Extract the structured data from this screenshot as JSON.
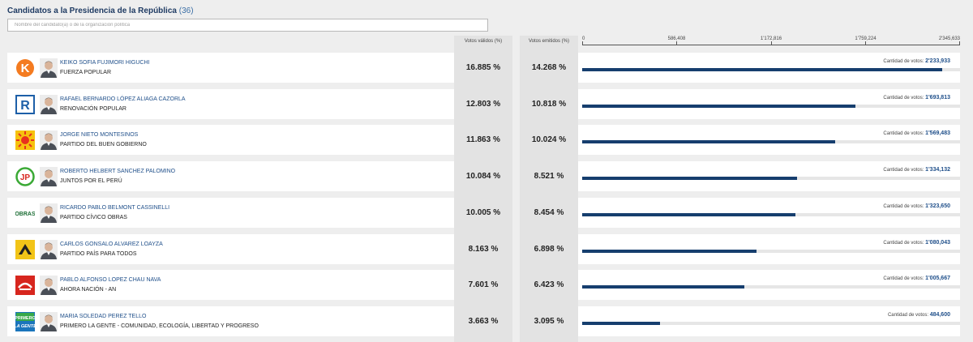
{
  "header": {
    "title": "Candidatos a la Presidencia de la República",
    "count": "(36)",
    "search_placeholder": "Nombre del candidato(a) o de la organización política",
    "col_valid": "Votos válidos (%)",
    "col_emit": "Votos emitidos (%)",
    "votes_label": "Cantidad de votos:"
  },
  "axis": {
    "max": 2345633,
    "ticks": [
      {
        "value": 0,
        "label": "0"
      },
      {
        "value": 586408,
        "label": "586,408"
      },
      {
        "value": 1172816,
        "label": "1'172,816"
      },
      {
        "value": 1759224,
        "label": "1'759,224"
      },
      {
        "value": 2345633,
        "label": "2'345,633"
      }
    ]
  },
  "candidates": [
    {
      "name": "KEIKO SOFIA FUJIMORI HIGUCHI",
      "party": "FUERZA POPULAR",
      "valid": "16.885 %",
      "emitted": "14.268 %",
      "votes_text": "2'233,933",
      "votes": 2233933,
      "logo_icon": "fuerza-popular-k-logo-icon",
      "logo_color": "#f47b20"
    },
    {
      "name": "RAFAEL BERNARDO LÓPEZ ALIAGA CAZORLA",
      "party": "RENOVACIÓN POPULAR",
      "valid": "12.803 %",
      "emitted": "10.818 %",
      "votes_text": "1'693,813",
      "votes": 1693813,
      "logo_icon": "renovacion-popular-r-logo-icon",
      "logo_color": "#1d5fa8"
    },
    {
      "name": "JORGE NIETO MONTESINOS",
      "party": "PARTIDO DEL BUEN GOBIERNO",
      "valid": "11.863 %",
      "emitted": "10.024 %",
      "votes_text": "1'569,483",
      "votes": 1569483,
      "logo_icon": "sun-logo-icon",
      "logo_color": "#e8321e"
    },
    {
      "name": "ROBERTO HELBERT SANCHEZ PALOMINO",
      "party": "JUNTOS POR EL PERÚ",
      "valid": "10.084 %",
      "emitted": "8.521 %",
      "votes_text": "1'334,132",
      "votes": 1334132,
      "logo_icon": "juntos-por-el-peru-jp-logo-icon",
      "logo_color": "#3aa935"
    },
    {
      "name": "RICARDO PABLO BELMONT CASSINELLI",
      "party": "PARTIDO CÍVICO OBRAS",
      "valid": "10.005 %",
      "emitted": "8.454 %",
      "votes_text": "1'323,650",
      "votes": 1323650,
      "logo_icon": "obras-logo-icon",
      "logo_color": "#1b6d34",
      "logo_text": "OBRAS"
    },
    {
      "name": "CARLOS GONSALO ALVAREZ LOAYZA",
      "party": "PARTIDO PAÍS PARA TODOS",
      "valid": "8.163 %",
      "emitted": "6.898 %",
      "votes_text": "1'080,043",
      "votes": 1080043,
      "logo_icon": "pais-para-todos-logo-icon",
      "logo_color": "#f2c418"
    },
    {
      "name": "PABLO ALFONSO LOPEZ CHAU NAVA",
      "party": "AHORA NACIÓN - AN",
      "valid": "7.601 %",
      "emitted": "6.423 %",
      "votes_text": "1'005,667",
      "votes": 1005667,
      "logo_icon": "ahora-nacion-logo-icon",
      "logo_color": "#d7261e"
    },
    {
      "name": "MARIA SOLEDAD PEREZ TELLO",
      "party": "PRIMERO LA GENTE - COMUNIDAD, ECOLOGÍA, LIBERTAD Y PROGRESO",
      "valid": "3.663 %",
      "emitted": "3.095 %",
      "votes_text": "484,600",
      "votes": 484600,
      "logo_icon": "primero-la-gente-logo-icon",
      "logo_color": "#1b75bc",
      "logo_text": "PRIMERO LA GENTE"
    }
  ],
  "colors": {
    "bar": "#163e6e",
    "track": "#e6e6e6",
    "name": "#1f4f8a",
    "title": "#1f3b63"
  }
}
